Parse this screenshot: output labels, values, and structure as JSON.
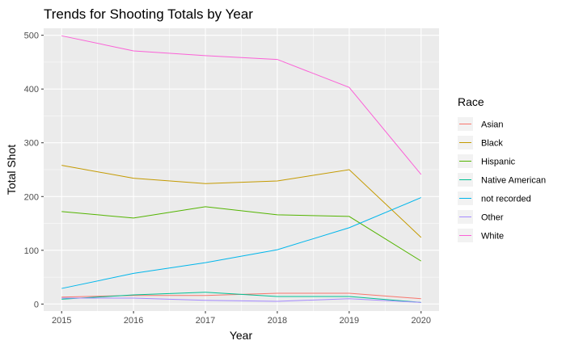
{
  "chart_data": {
    "type": "line",
    "title": "Trends for Shooting Totals by Year",
    "xlabel": "Year",
    "ylabel": "Total Shot",
    "x": [
      2015,
      2016,
      2017,
      2018,
      2019,
      2020
    ],
    "xlim": [
      2014.75,
      2020.25
    ],
    "ylim": [
      -13,
      513
    ],
    "yticks": [
      0,
      100,
      200,
      300,
      400,
      500
    ],
    "grid": true,
    "legend": {
      "title": "Race",
      "position": "right"
    },
    "series": [
      {
        "name": "Asian",
        "color": "#F8766D",
        "values": [
          13,
          16,
          16,
          20,
          20,
          10
        ]
      },
      {
        "name": "Black",
        "color": "#C49A00",
        "values": [
          258,
          234,
          224,
          229,
          250,
          124
        ]
      },
      {
        "name": "Hispanic",
        "color": "#53B400",
        "values": [
          172,
          160,
          181,
          166,
          163,
          80
        ]
      },
      {
        "name": "Native American",
        "color": "#00C094",
        "values": [
          9,
          17,
          22,
          14,
          14,
          3
        ]
      },
      {
        "name": "not recorded",
        "color": "#00B6EB",
        "values": [
          29,
          57,
          77,
          101,
          142,
          198
        ]
      },
      {
        "name": "Other",
        "color": "#A58AFF",
        "values": [
          11,
          11,
          7,
          5,
          10,
          3
        ]
      },
      {
        "name": "White",
        "color": "#FB61D7",
        "values": [
          499,
          471,
          462,
          455,
          403,
          241
        ]
      }
    ]
  }
}
